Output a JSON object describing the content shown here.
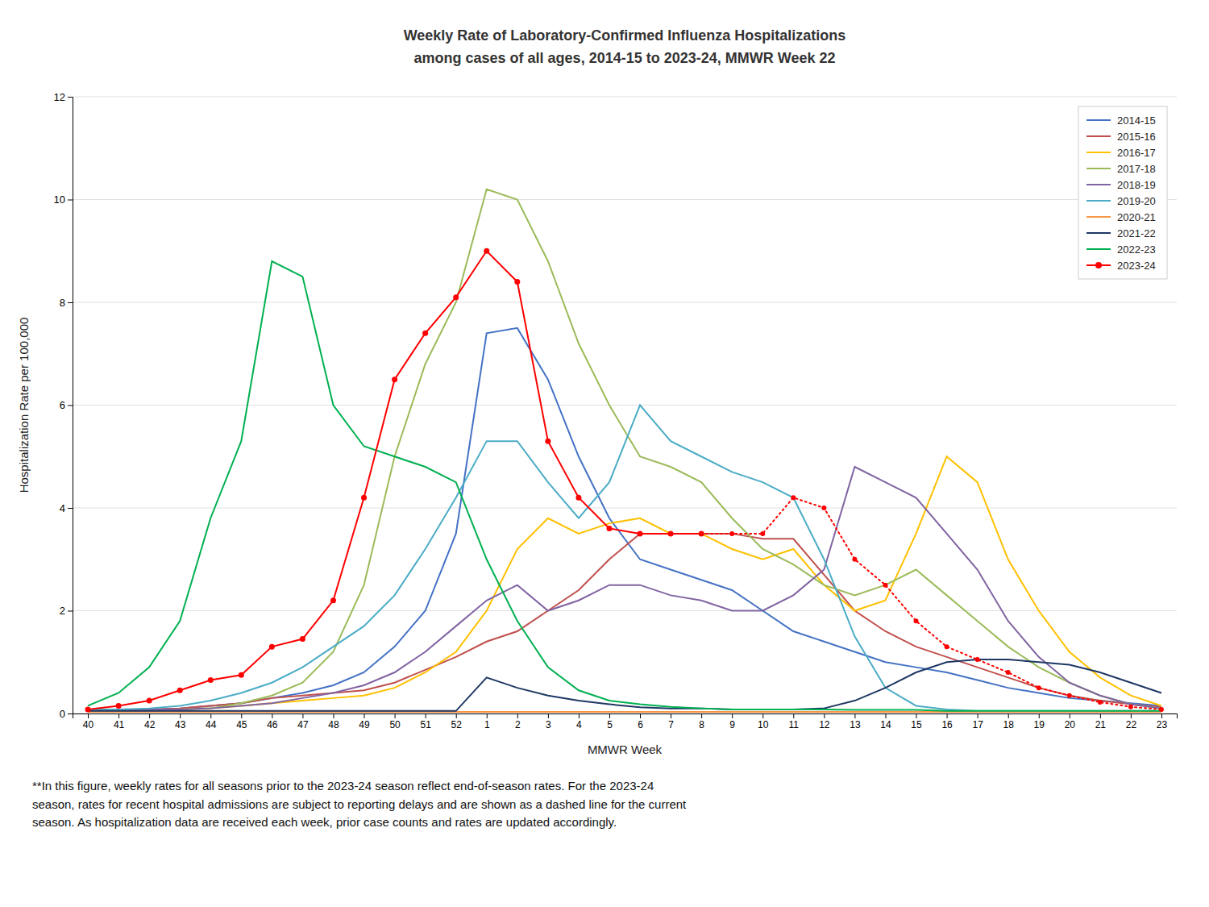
{
  "chart_data": {
    "type": "line",
    "title": "Weekly Rate of Laboratory-Confirmed Influenza Hospitalizations",
    "subtitle": "among cases of all ages, 2014-15 to 2023-24, MMWR Week 22",
    "x_label": "MMWR Week",
    "y_label": "Hospitalization Rate per 100,000",
    "footnote": "**In this figure, weekly rates for all seasons prior to the 2023-24 season reflect end-of-season rates. For the 2023-24\nseason, rates for recent hospital admissions are subject to reporting delays and are shown as a dashed line for the current\nseason. As hospitalization data are received each week, prior case counts and rates are updated accordingly.",
    "categories": [
      "40",
      "41",
      "42",
      "43",
      "44",
      "45",
      "46",
      "47",
      "48",
      "49",
      "50",
      "51",
      "52",
      "1",
      "2",
      "3",
      "4",
      "5",
      "6",
      "7",
      "8",
      "9",
      "10",
      "11",
      "12",
      "13",
      "14",
      "15",
      "16",
      "17",
      "18",
      "19",
      "20",
      "21",
      "22",
      "23"
    ],
    "ylim": [
      0,
      12
    ],
    "yticks": [
      0,
      2,
      4,
      6,
      8,
      10,
      12
    ],
    "grid": true,
    "legend": "upper right",
    "series": [
      {
        "name": "2014-15",
        "color": "#4472C4",
        "values": [
          0.08,
          0.08,
          0.08,
          0.1,
          0.15,
          0.2,
          0.3,
          0.4,
          0.55,
          0.8,
          1.3,
          2.0,
          3.5,
          7.4,
          7.5,
          6.5,
          5.0,
          3.8,
          3.0,
          2.8,
          2.6,
          2.4,
          2.0,
          1.6,
          1.4,
          1.2,
          1.0,
          0.9,
          0.8,
          0.65,
          0.5,
          0.4,
          0.3,
          0.25,
          0.2,
          0.15
        ]
      },
      {
        "name": "2015-16",
        "color": "#C0504D",
        "values": [
          0.08,
          0.08,
          0.08,
          0.1,
          0.15,
          0.2,
          0.3,
          0.35,
          0.4,
          0.45,
          0.6,
          0.85,
          1.1,
          1.4,
          1.6,
          2.0,
          2.4,
          3.0,
          3.5,
          3.5,
          3.5,
          3.5,
          3.4,
          3.4,
          2.7,
          2.0,
          1.6,
          1.3,
          1.1,
          0.9,
          0.7,
          0.5,
          0.35,
          0.25,
          0.18,
          0.12
        ]
      },
      {
        "name": "2016-17",
        "color": "#FFC000",
        "values": [
          0.08,
          0.08,
          0.08,
          0.08,
          0.1,
          0.15,
          0.2,
          0.25,
          0.3,
          0.35,
          0.5,
          0.8,
          1.2,
          2.0,
          3.2,
          3.8,
          3.5,
          3.7,
          3.8,
          3.5,
          3.5,
          3.2,
          3.0,
          3.2,
          2.5,
          2.0,
          2.2,
          3.5,
          5.0,
          4.5,
          3.0,
          2.0,
          1.2,
          0.7,
          0.35,
          0.15
        ]
      },
      {
        "name": "2017-18",
        "color": "#9BBB59",
        "values": [
          0.08,
          0.08,
          0.08,
          0.08,
          0.1,
          0.2,
          0.35,
          0.6,
          1.2,
          2.5,
          5.0,
          6.8,
          8.0,
          10.2,
          10.0,
          8.8,
          7.2,
          6.0,
          5.0,
          4.8,
          4.5,
          3.8,
          3.2,
          2.9,
          2.5,
          2.3,
          2.5,
          2.8,
          2.3,
          1.8,
          1.3,
          0.9,
          0.6,
          0.35,
          0.18,
          0.1
        ]
      },
      {
        "name": "2018-19",
        "color": "#8064A2",
        "values": [
          0.08,
          0.08,
          0.08,
          0.08,
          0.1,
          0.15,
          0.2,
          0.3,
          0.4,
          0.55,
          0.8,
          1.2,
          1.7,
          2.2,
          2.5,
          2.0,
          2.2,
          2.5,
          2.5,
          2.3,
          2.2,
          2.0,
          2.0,
          2.3,
          2.8,
          4.8,
          4.5,
          4.2,
          3.5,
          2.8,
          1.8,
          1.1,
          0.6,
          0.35,
          0.18,
          0.1
        ]
      },
      {
        "name": "2019-20",
        "color": "#4BACC6",
        "values": [
          0.08,
          0.08,
          0.1,
          0.15,
          0.25,
          0.4,
          0.6,
          0.9,
          1.3,
          1.7,
          2.3,
          3.2,
          4.2,
          5.3,
          5.3,
          4.5,
          3.8,
          4.5,
          6.0,
          5.3,
          5.0,
          4.7,
          4.5,
          4.2,
          3.0,
          1.5,
          0.5,
          0.15,
          0.08,
          0.05,
          0.05,
          0.05,
          0.05,
          0.05,
          0.05,
          0.05
        ]
      },
      {
        "name": "2020-21",
        "color": "#F79646",
        "values": [
          0.03,
          0.03,
          0.03,
          0.03,
          0.03,
          0.03,
          0.03,
          0.03,
          0.03,
          0.03,
          0.03,
          0.03,
          0.03,
          0.03,
          0.03,
          0.03,
          0.03,
          0.03,
          0.03,
          0.03,
          0.03,
          0.03,
          0.03,
          0.03,
          0.03,
          0.03,
          0.03,
          0.03,
          0.03,
          0.03,
          0.03,
          0.03,
          0.03,
          0.03,
          0.03,
          0.03
        ]
      },
      {
        "name": "2021-22",
        "color": "#1F3864",
        "values": [
          0.05,
          0.05,
          0.05,
          0.05,
          0.05,
          0.05,
          0.05,
          0.05,
          0.05,
          0.05,
          0.05,
          0.05,
          0.05,
          0.7,
          0.5,
          0.35,
          0.25,
          0.18,
          0.12,
          0.1,
          0.1,
          0.08,
          0.08,
          0.08,
          0.1,
          0.25,
          0.5,
          0.8,
          1.0,
          1.05,
          1.05,
          1.0,
          0.95,
          0.8,
          0.6,
          0.4
        ]
      },
      {
        "name": "2022-23",
        "color": "#00B050",
        "values": [
          0.15,
          0.4,
          0.9,
          1.8,
          3.8,
          5.3,
          8.8,
          8.5,
          6.0,
          5.2,
          5.0,
          4.8,
          4.5,
          3.0,
          1.8,
          0.9,
          0.45,
          0.25,
          0.18,
          0.13,
          0.1,
          0.08,
          0.08,
          0.08,
          0.08,
          0.07,
          0.07,
          0.07,
          0.05,
          0.05,
          0.05,
          0.05,
          0.05,
          0.05,
          0.05,
          0.05
        ]
      },
      {
        "name": "2023-24",
        "color": "#FF0000",
        "marker": "circle",
        "dashed_start": 20,
        "values": [
          0.08,
          0.15,
          0.25,
          0.45,
          0.65,
          0.75,
          1.3,
          1.45,
          2.2,
          4.2,
          6.5,
          7.4,
          8.1,
          9.0,
          8.4,
          5.3,
          4.2,
          3.6,
          3.5,
          3.5,
          3.5,
          3.5,
          3.5,
          4.2,
          4.0,
          3.0,
          2.5,
          1.8,
          1.3,
          1.05,
          0.8,
          0.5,
          0.35,
          0.22,
          0.13,
          0.08
        ]
      }
    ]
  }
}
